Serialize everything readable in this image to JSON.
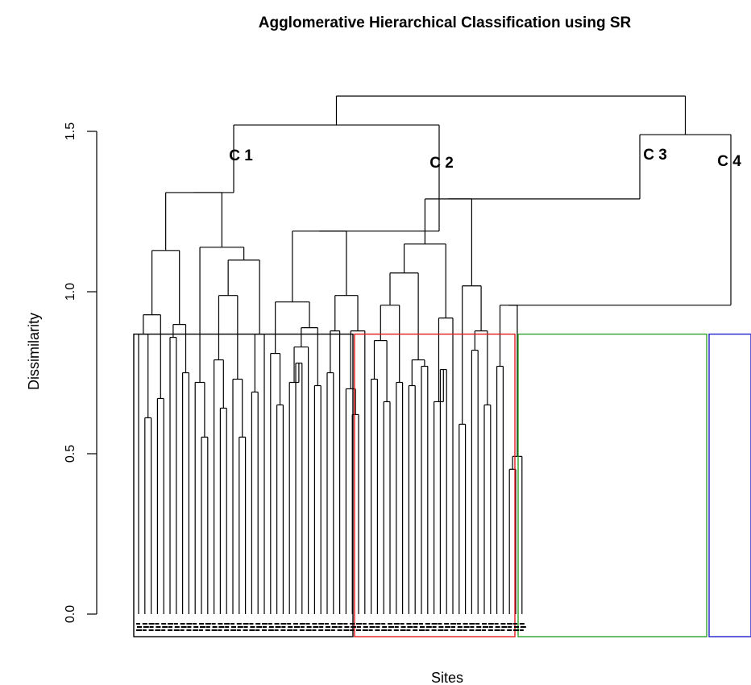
{
  "chart_data": {
    "type": "dendrogram",
    "title": "Agglomerative Hierarchical Classification using SR",
    "xlabel": "Sites",
    "ylabel": "Dissimilarity",
    "ylim": [
      0.0,
      1.5
    ],
    "yticks": [
      "0.0",
      "0.5",
      "1.0",
      "1.5"
    ],
    "cut_height": 0.87,
    "leaf_count": 62,
    "clusters": [
      {
        "label": "C 1",
        "color": "#000000",
        "height": 1.52,
        "leaves": [
          0,
          19
        ]
      },
      {
        "label": "C 2",
        "color": "#e31a1c",
        "height": 1.52,
        "leaves": [
          20,
          32
        ]
      },
      {
        "label": "C 3",
        "color": "#2ca02c",
        "height": 1.49,
        "leaves": [
          33,
          50
        ]
      },
      {
        "label": "C 4",
        "color": "#1f1fcc",
        "height": 1.49,
        "leaves": [
          51,
          61
        ]
      }
    ],
    "merges": [
      {
        "height": 1.61,
        "joins": [
          "C1+C2",
          "C3+C4"
        ]
      },
      {
        "height": 1.52,
        "joins": [
          "C 1",
          "C 2"
        ]
      },
      {
        "height": 1.49,
        "joins": [
          "C 3",
          "C 4"
        ]
      },
      {
        "height": 1.31,
        "joins": [
          "C1-left",
          "C1-right"
        ]
      },
      {
        "height": 1.18,
        "joins": [
          "C2-left",
          "C2-right"
        ]
      },
      {
        "height": 1.29,
        "joins": [
          "C3-left",
          "C3-right"
        ]
      },
      {
        "height": 0.96,
        "joins": [
          "C4-a",
          "C4-b"
        ]
      }
    ]
  }
}
